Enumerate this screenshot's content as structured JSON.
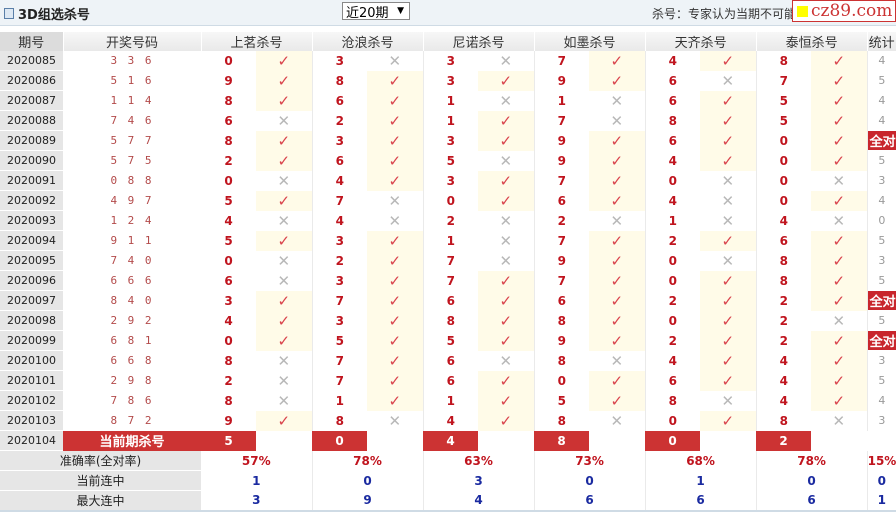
{
  "header": {
    "title": "3D组选杀号",
    "period_select": "近20期",
    "note": "杀号：专家认为当期不可能",
    "logo": "cz89.com"
  },
  "columns": [
    "期号",
    "开奖号码",
    "上茗杀号",
    "沧浪杀号",
    "尼诺杀号",
    "如墨杀号",
    "天齐杀号",
    "泰恒杀号",
    "统计"
  ],
  "colors": {
    "accent": "#cc3333",
    "check": "#d9434c",
    "cross": "#b8b8b8",
    "streak": "#1a2aa0"
  },
  "icons": {
    "hit": "check-icon",
    "miss": "cross-icon"
  },
  "rows": [
    {
      "period": "2020085",
      "draw": "3 3 6",
      "kills": [
        [
          "0",
          1
        ],
        [
          "3",
          0
        ],
        [
          "3",
          0
        ],
        [
          "7",
          1
        ],
        [
          "4",
          1
        ],
        [
          "8",
          1
        ]
      ],
      "stat": "4"
    },
    {
      "period": "2020086",
      "draw": "5 1 6",
      "kills": [
        [
          "9",
          1
        ],
        [
          "8",
          1
        ],
        [
          "3",
          1
        ],
        [
          "9",
          1
        ],
        [
          "6",
          0
        ],
        [
          "7",
          1
        ]
      ],
      "stat": "5"
    },
    {
      "period": "2020087",
      "draw": "1 1 4",
      "kills": [
        [
          "8",
          1
        ],
        [
          "6",
          1
        ],
        [
          "1",
          0
        ],
        [
          "1",
          0
        ],
        [
          "6",
          1
        ],
        [
          "5",
          1
        ]
      ],
      "stat": "4"
    },
    {
      "period": "2020088",
      "draw": "7 4 6",
      "kills": [
        [
          "6",
          0
        ],
        [
          "2",
          1
        ],
        [
          "1",
          1
        ],
        [
          "7",
          0
        ],
        [
          "8",
          1
        ],
        [
          "5",
          1
        ]
      ],
      "stat": "4"
    },
    {
      "period": "2020089",
      "draw": "5 7 7",
      "kills": [
        [
          "8",
          1
        ],
        [
          "3",
          1
        ],
        [
          "3",
          1
        ],
        [
          "9",
          1
        ],
        [
          "6",
          1
        ],
        [
          "0",
          1
        ]
      ],
      "stat": "全对"
    },
    {
      "period": "2020090",
      "draw": "5 7 5",
      "kills": [
        [
          "2",
          1
        ],
        [
          "6",
          1
        ],
        [
          "5",
          0
        ],
        [
          "9",
          1
        ],
        [
          "4",
          1
        ],
        [
          "0",
          1
        ]
      ],
      "stat": "5"
    },
    {
      "period": "2020091",
      "draw": "0 8 8",
      "kills": [
        [
          "0",
          0
        ],
        [
          "4",
          1
        ],
        [
          "3",
          1
        ],
        [
          "7",
          1
        ],
        [
          "0",
          0
        ],
        [
          "0",
          0
        ]
      ],
      "stat": "3"
    },
    {
      "period": "2020092",
      "draw": "4 9 7",
      "kills": [
        [
          "5",
          1
        ],
        [
          "7",
          0
        ],
        [
          "0",
          1
        ],
        [
          "6",
          1
        ],
        [
          "4",
          0
        ],
        [
          "0",
          1
        ]
      ],
      "stat": "4"
    },
    {
      "period": "2020093",
      "draw": "1 2 4",
      "kills": [
        [
          "4",
          0
        ],
        [
          "4",
          0
        ],
        [
          "2",
          0
        ],
        [
          "2",
          0
        ],
        [
          "1",
          0
        ],
        [
          "4",
          0
        ]
      ],
      "stat": "0"
    },
    {
      "period": "2020094",
      "draw": "9 1 1",
      "kills": [
        [
          "5",
          1
        ],
        [
          "3",
          1
        ],
        [
          "1",
          0
        ],
        [
          "7",
          1
        ],
        [
          "2",
          1
        ],
        [
          "6",
          1
        ]
      ],
      "stat": "5"
    },
    {
      "period": "2020095",
      "draw": "7 4 0",
      "kills": [
        [
          "0",
          0
        ],
        [
          "2",
          1
        ],
        [
          "7",
          0
        ],
        [
          "9",
          1
        ],
        [
          "0",
          0
        ],
        [
          "8",
          1
        ]
      ],
      "stat": "3"
    },
    {
      "period": "2020096",
      "draw": "6 6 6",
      "kills": [
        [
          "6",
          0
        ],
        [
          "3",
          1
        ],
        [
          "7",
          1
        ],
        [
          "7",
          1
        ],
        [
          "0",
          1
        ],
        [
          "8",
          1
        ]
      ],
      "stat": "5"
    },
    {
      "period": "2020097",
      "draw": "8 4 0",
      "kills": [
        [
          "3",
          1
        ],
        [
          "7",
          1
        ],
        [
          "6",
          1
        ],
        [
          "6",
          1
        ],
        [
          "2",
          1
        ],
        [
          "2",
          1
        ]
      ],
      "stat": "全对"
    },
    {
      "period": "2020098",
      "draw": "2 9 2",
      "kills": [
        [
          "4",
          1
        ],
        [
          "3",
          1
        ],
        [
          "8",
          1
        ],
        [
          "8",
          1
        ],
        [
          "0",
          1
        ],
        [
          "2",
          0
        ]
      ],
      "stat": "5"
    },
    {
      "period": "2020099",
      "draw": "6 8 1",
      "kills": [
        [
          "0",
          1
        ],
        [
          "5",
          1
        ],
        [
          "5",
          1
        ],
        [
          "9",
          1
        ],
        [
          "2",
          1
        ],
        [
          "2",
          1
        ]
      ],
      "stat": "全对"
    },
    {
      "period": "2020100",
      "draw": "6 6 8",
      "kills": [
        [
          "8",
          0
        ],
        [
          "7",
          1
        ],
        [
          "6",
          0
        ],
        [
          "8",
          0
        ],
        [
          "4",
          1
        ],
        [
          "4",
          1
        ]
      ],
      "stat": "3"
    },
    {
      "period": "2020101",
      "draw": "2 9 8",
      "kills": [
        [
          "2",
          0
        ],
        [
          "7",
          1
        ],
        [
          "6",
          1
        ],
        [
          "0",
          1
        ],
        [
          "6",
          1
        ],
        [
          "4",
          1
        ]
      ],
      "stat": "5"
    },
    {
      "period": "2020102",
      "draw": "7 8 6",
      "kills": [
        [
          "8",
          0
        ],
        [
          "1",
          1
        ],
        [
          "1",
          1
        ],
        [
          "5",
          1
        ],
        [
          "8",
          0
        ],
        [
          "4",
          1
        ]
      ],
      "stat": "4"
    },
    {
      "period": "2020103",
      "draw": "8 7 2",
      "kills": [
        [
          "9",
          1
        ],
        [
          "8",
          0
        ],
        [
          "4",
          1
        ],
        [
          "8",
          0
        ],
        [
          "0",
          1
        ],
        [
          "8",
          0
        ]
      ],
      "stat": "3"
    }
  ],
  "current": {
    "period": "2020104",
    "label": "当前期杀号",
    "kills": [
      "5",
      "0",
      "4",
      "8",
      "0",
      "2"
    ]
  },
  "summary": [
    {
      "label": "准确率(全对率)",
      "values": [
        "57%",
        "78%",
        "63%",
        "73%",
        "68%",
        "78%",
        "15%"
      ],
      "kind": "rate"
    },
    {
      "label": "当前连中",
      "values": [
        "1",
        "0",
        "3",
        "0",
        "1",
        "0",
        "0"
      ],
      "kind": "streak"
    },
    {
      "label": "最大连中",
      "values": [
        "3",
        "9",
        "4",
        "6",
        "6",
        "6",
        "1"
      ],
      "kind": "streak"
    }
  ]
}
